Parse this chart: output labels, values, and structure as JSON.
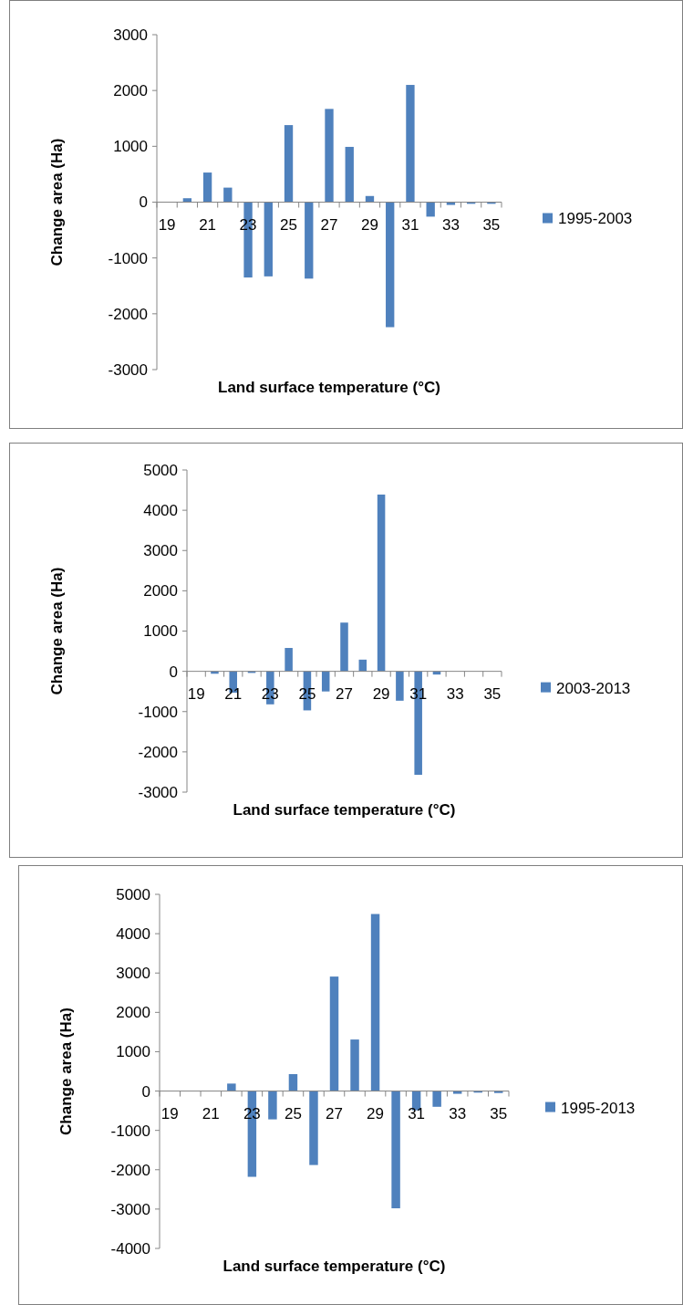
{
  "chart_data": [
    {
      "type": "bar",
      "xlabel": "Land surface temperature (°C)",
      "ylabel": "Change area (Ha)",
      "categories": [
        "19",
        null,
        "21",
        null,
        "23",
        null,
        "25",
        null,
        "27",
        null,
        "29",
        null,
        "31",
        null,
        "33",
        null,
        "35"
      ],
      "series": [
        {
          "name": "1995-2003",
          "color": "#4f81bd",
          "values": [
            0,
            70,
            530,
            260,
            -1350,
            -1330,
            1380,
            -1370,
            1670,
            990,
            110,
            -2240,
            2100,
            -260,
            -50,
            -30,
            -30
          ]
        }
      ],
      "ylim": [
        -3000,
        3000
      ],
      "yticks": [
        -3000,
        -2000,
        -1000,
        0,
        1000,
        2000,
        3000
      ],
      "grid": false,
      "legend": "right"
    },
    {
      "type": "bar",
      "xlabel": "Land surface temperature (°C)",
      "ylabel": "Change area (Ha)",
      "categories": [
        "19",
        null,
        "21",
        null,
        "23",
        null,
        "25",
        null,
        "27",
        null,
        "29",
        null,
        "31",
        null,
        "33",
        null,
        "35"
      ],
      "series": [
        {
          "name": "2003-2013",
          "color": "#4f81bd",
          "values": [
            0,
            -60,
            -530,
            -40,
            -820,
            580,
            -970,
            -500,
            1210,
            290,
            4390,
            -730,
            -2570,
            -80,
            0,
            0,
            0
          ]
        }
      ],
      "ylim": [
        -3000,
        5000
      ],
      "yticks": [
        -3000,
        -2000,
        -1000,
        0,
        1000,
        2000,
        3000,
        4000,
        5000
      ],
      "grid": false,
      "legend": "right"
    },
    {
      "type": "bar",
      "xlabel": "Land surface temperature (°C)",
      "ylabel": "Change area (Ha)",
      "categories": [
        "19",
        null,
        "21",
        null,
        "23",
        null,
        "25",
        null,
        "27",
        null,
        "29",
        null,
        "31",
        null,
        "33",
        null,
        "35"
      ],
      "series": [
        {
          "name": "1995-2013",
          "color": "#4f81bd",
          "values": [
            0,
            0,
            0,
            190,
            -2180,
            -720,
            430,
            -1880,
            2910,
            1310,
            4500,
            -2980,
            -490,
            -400,
            -70,
            -40,
            -50
          ]
        }
      ],
      "ylim": [
        -4000,
        5000
      ],
      "yticks": [
        -4000,
        -3000,
        -2000,
        -1000,
        0,
        1000,
        2000,
        3000,
        4000,
        5000
      ],
      "grid": false,
      "legend": "right"
    }
  ]
}
